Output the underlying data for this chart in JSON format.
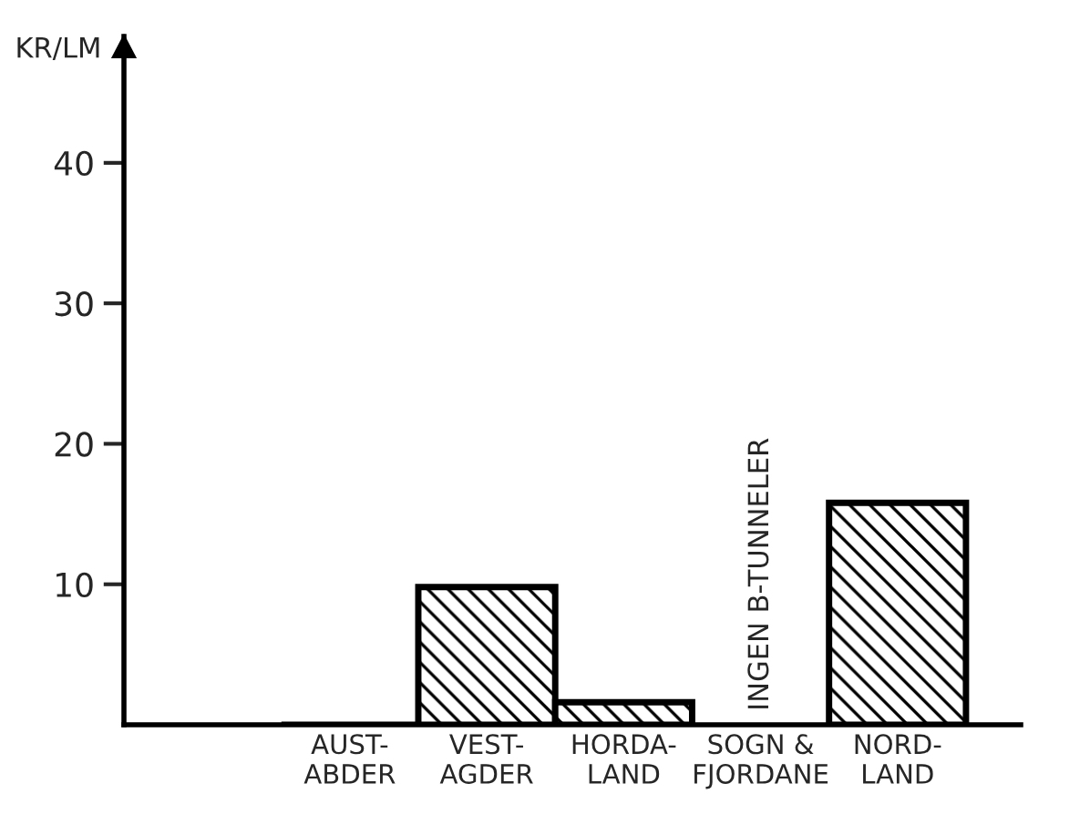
{
  "chart_data": {
    "type": "bar",
    "ylabel": "KR/LM",
    "categories": [
      "AUST-\nABDER",
      "VEST-\nAGDER",
      "HORDA-\nLAND",
      "SOGN &\nFJORDANE",
      "NORD-\nLAND"
    ],
    "values": [
      0,
      9.8,
      1.6,
      null,
      15.8
    ],
    "color": "#000000",
    "ylim": [
      0,
      49
    ],
    "yticks": [
      10,
      20,
      30,
      40
    ],
    "grid": false,
    "annotations": [
      "INGEN B-TUNNELER"
    ]
  }
}
